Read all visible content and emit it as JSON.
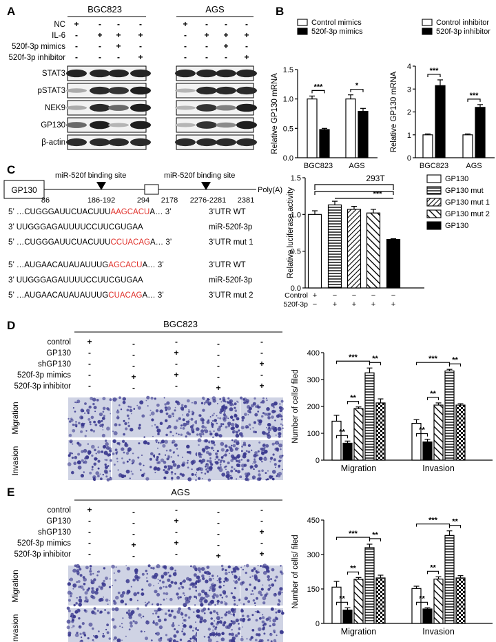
{
  "panels": [
    "A",
    "B",
    "C",
    "D",
    "E"
  ],
  "panelA": {
    "groups": [
      "BGC823",
      "AGS"
    ],
    "condition_rows": [
      {
        "label": "NC",
        "signs": [
          "+",
          "-",
          "-",
          "-"
        ]
      },
      {
        "label": "IL-6",
        "signs": [
          "-",
          "+",
          "+",
          "+"
        ]
      },
      {
        "label": "520f-3p mimics",
        "signs": [
          "-",
          "-",
          "+",
          "-"
        ]
      },
      {
        "label": "520f-3p inhibitor",
        "signs": [
          "-",
          "-",
          "-",
          "+"
        ]
      }
    ],
    "blots": [
      {
        "label": "STAT3",
        "bgc": [
          0.92,
          0.92,
          0.92,
          0.92
        ],
        "ags": [
          0.92,
          0.92,
          0.92,
          0.92
        ]
      },
      {
        "label": "pSTAT3",
        "bgc": [
          0.3,
          0.9,
          0.85,
          0.95
        ],
        "ags": [
          0.25,
          0.9,
          0.9,
          0.9
        ]
      },
      {
        "label": "NEK9",
        "bgc": [
          0.3,
          0.9,
          0.6,
          0.95
        ],
        "ags": [
          0.25,
          0.85,
          0.5,
          0.95
        ]
      },
      {
        "label": "GP130",
        "bgc": [
          0.6,
          0.95,
          0.25,
          0.95
        ],
        "ags": [
          0.25,
          0.85,
          0.45,
          0.95
        ]
      },
      {
        "label": "β-actin",
        "bgc": [
          0.9,
          0.9,
          0.9,
          0.9
        ],
        "ags": [
          0.9,
          0.9,
          0.9,
          0.9
        ]
      }
    ]
  },
  "chart_data": [
    {
      "type": "bar",
      "id": "B1",
      "categories": [
        "BGC823",
        "AGS"
      ],
      "ylabel": "Relative GP130 mRNA",
      "ylim": [
        0,
        1.5
      ],
      "yticks": [
        "0.0",
        "0.5",
        "1.0",
        "1.5"
      ],
      "series": [
        {
          "name": "Control  mimics",
          "values": [
            1.0,
            1.0
          ],
          "errors": [
            0.05,
            0.07
          ]
        },
        {
          "name": "520f-3p mimics",
          "values": [
            0.48,
            0.79
          ],
          "errors": [
            0.02,
            0.05
          ]
        }
      ],
      "significance": [
        "***",
        "*"
      ]
    },
    {
      "type": "bar",
      "id": "B2",
      "categories": [
        "BGC823",
        "AGS"
      ],
      "ylabel": "Relative GP130 mRNA",
      "ylim": [
        0,
        4
      ],
      "yticks": [
        "0",
        "1",
        "2",
        "3",
        "4"
      ],
      "series": [
        {
          "name": "Control inhibitor",
          "values": [
            1.0,
            1.0
          ],
          "errors": [
            0.04,
            0.04
          ]
        },
        {
          "name": "520f-3p inhibitor",
          "values": [
            3.15,
            2.2
          ],
          "errors": [
            0.25,
            0.12
          ]
        }
      ],
      "significance": [
        "***",
        "***"
      ]
    },
    {
      "type": "bar",
      "id": "C",
      "title": "293T",
      "ylabel": "Relative luciferase activity",
      "ylim": [
        0,
        1.5
      ],
      "yticks": [
        "0.0",
        "0.5",
        "1.0",
        "1.5"
      ],
      "legend": [
        "GP130",
        "GP130 mut",
        "GP130 mut 1",
        "GP130 mut 2",
        "GP130"
      ],
      "values": [
        1.0,
        1.13,
        1.07,
        1.02,
        0.66
      ],
      "errors": [
        0.05,
        0.05,
        0.04,
        0.05,
        0.01
      ],
      "row_control": {
        "label": "Control",
        "signs": [
          "+",
          "−",
          "−",
          "−",
          "−"
        ]
      },
      "row_520": {
        "label": "520f-3p",
        "signs": [
          "−",
          "+",
          "+",
          "+",
          "+"
        ]
      },
      "significance": "***"
    },
    {
      "type": "bar",
      "id": "D",
      "categories": [
        "Migration",
        "Invasion"
      ],
      "ylabel": "Number of cells/ filed",
      "ylim": [
        0,
        400
      ],
      "yticks": [
        "0",
        "100",
        "200",
        "300",
        "400"
      ],
      "groups": [
        {
          "values": [
            145,
            63,
            192,
            325,
            213
          ],
          "errors": [
            22,
            8,
            6,
            18,
            15
          ]
        },
        {
          "values": [
            137,
            68,
            205,
            332,
            205
          ],
          "errors": [
            14,
            10,
            8,
            6,
            5
          ]
        }
      ],
      "significance": [
        "**",
        "**",
        "***",
        "**"
      ]
    },
    {
      "type": "bar",
      "id": "E",
      "categories": [
        "Migration",
        "Invasion"
      ],
      "ylabel": "Number of cells/ filed",
      "ylim": [
        0,
        450
      ],
      "yticks": [
        "0",
        "150",
        "300",
        "450"
      ],
      "groups": [
        {
          "values": [
            158,
            58,
            192,
            330,
            198
          ],
          "errors": [
            25,
            10,
            8,
            15,
            12
          ]
        },
        {
          "values": [
            152,
            63,
            193,
            383,
            198
          ],
          "errors": [
            10,
            5,
            10,
            20,
            10
          ]
        }
      ],
      "significance": [
        "**",
        "**",
        "***",
        "**"
      ]
    }
  ],
  "panelC": {
    "gene_box": "GP130",
    "site_label_1": "miR-520f  binding  site",
    "site_label_2": "miR-520f  binding  site",
    "positions": [
      "86",
      "186-192",
      "294",
      "2178",
      "2276-2281",
      "2381"
    ],
    "polya": "Poly(A)",
    "seqs": [
      {
        "pre": "5’ …CUGGGAUUCUACUUU",
        "red": "AAGCACU",
        "post": "A… 3’",
        "tag": "3’UTR WT"
      },
      {
        "pre": "3’  UUGGGAGAUUUUCCUUCGUGAA",
        "red": "",
        "post": "",
        "tag": "miR-520f-3p"
      },
      {
        "pre": "5’ …CUGGGAUUCUACUUU",
        "red": "CCUACAG",
        "post": "A… 3’",
        "tag": "3’UTR mut 1"
      },
      {
        "pre": "5’ …AUGAACAUAUAUUUG",
        "red": "AGCACU",
        "post": "A… 3’",
        "tag": "3’UTR WT"
      },
      {
        "pre": "3’  UUGGGAGAUUUUCCUUCGUGAA",
        "red": "",
        "post": "",
        "tag": "miR-520f-3p"
      },
      {
        "pre": "5’ …AUGAACAUAUAUUUG",
        "red": "CUACAG",
        "post": "A… 3’",
        "tag": "3’UTR mut 2"
      }
    ]
  },
  "panelD": {
    "group": "BGC823",
    "rows": [
      {
        "label": "control",
        "signs": [
          "+",
          "-",
          "-",
          "-",
          "-"
        ]
      },
      {
        "label": "GP130",
        "signs": [
          "-",
          "-",
          "+",
          "-",
          "-"
        ]
      },
      {
        "label": "shGP130",
        "signs": [
          "-",
          "-",
          "-",
          "-",
          "+"
        ]
      },
      {
        "label": "520f-3p mimics",
        "signs": [
          "-",
          "+",
          "+",
          "-",
          "-"
        ]
      },
      {
        "label": "520f-3p inhibitor",
        "signs": [
          "-",
          "-",
          "-",
          "+",
          "+"
        ]
      }
    ],
    "image_rows": [
      "Migration",
      "Invasion"
    ]
  },
  "panelE": {
    "group": "AGS",
    "rows": [
      {
        "label": "control",
        "signs": [
          "+",
          "-",
          "-",
          "-",
          "-"
        ]
      },
      {
        "label": "GP130",
        "signs": [
          "-",
          "-",
          "+",
          "-",
          "-"
        ]
      },
      {
        "label": "shGP130",
        "signs": [
          "-",
          "-",
          "-",
          "-",
          "+"
        ]
      },
      {
        "label": "520f-3p mimics",
        "signs": [
          "-",
          "+",
          "+",
          "-",
          "-"
        ]
      },
      {
        "label": "520f-3p inhibitor",
        "signs": [
          "-",
          "-",
          "-",
          "+",
          "+"
        ]
      }
    ],
    "image_rows": [
      "Migration",
      "Invasion"
    ]
  },
  "densities": {
    "D": [
      [
        0.35,
        0.2,
        0.4,
        0.8,
        0.6
      ],
      [
        0.5,
        0.25,
        0.5,
        0.85,
        0.7
      ]
    ],
    "E": [
      [
        0.55,
        0.25,
        0.45,
        0.7,
        0.5
      ],
      [
        0.35,
        0.2,
        0.5,
        0.6,
        0.45
      ]
    ]
  },
  "colors": {
    "dot": "#3b3a8f",
    "bg": "#cfd3e4",
    "red": "#e0302a"
  }
}
